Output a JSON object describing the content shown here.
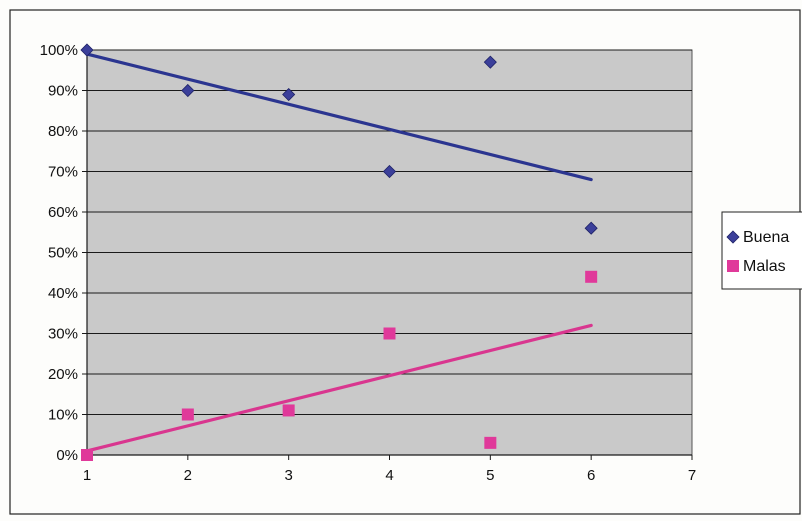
{
  "chart_data": {
    "type": "scatter",
    "title": "",
    "xlabel": "",
    "ylabel": "",
    "xlim": [
      1,
      7
    ],
    "ylim": [
      0,
      1
    ],
    "x_ticks": [
      "1",
      "2",
      "3",
      "4",
      "5",
      "6",
      "7"
    ],
    "y_ticks": [
      "0%",
      "10%",
      "20%",
      "30%",
      "40%",
      "50%",
      "60%",
      "70%",
      "80%",
      "90%",
      "100%"
    ],
    "grid": "horizontal",
    "legend_position": "right",
    "plot_background": "#c9c9c9",
    "series": [
      {
        "name": "Buena",
        "marker": "diamond",
        "color": "#3b3f9a",
        "x": [
          1,
          2,
          3,
          4,
          5,
          6
        ],
        "y": [
          1.0,
          0.9,
          0.89,
          0.7,
          0.97,
          0.56
        ],
        "trendline": {
          "x": [
            1,
            6
          ],
          "y": [
            0.99,
            0.68
          ],
          "color": "#2b3590"
        }
      },
      {
        "name": "Malas",
        "marker": "square",
        "color": "#e0399a",
        "x": [
          1,
          2,
          3,
          4,
          5,
          6
        ],
        "y": [
          0.0,
          0.1,
          0.11,
          0.3,
          0.03,
          0.44
        ],
        "trendline": {
          "x": [
            1,
            6
          ],
          "y": [
            0.01,
            0.32
          ],
          "color": "#d9368f"
        }
      }
    ]
  }
}
